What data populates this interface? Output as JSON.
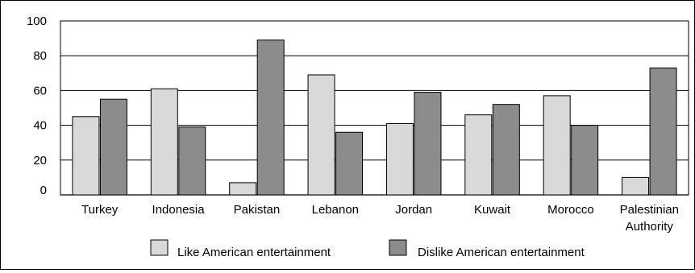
{
  "chart_data": {
    "type": "bar",
    "categories": [
      "Turkey",
      "Indonesia",
      "Pakistan",
      "Lebanon",
      "Jordan",
      "Kuwait",
      "Morocco",
      "Palestinian Authority"
    ],
    "category_lines": [
      [
        "Turkey"
      ],
      [
        "Indonesia"
      ],
      [
        "Pakistan"
      ],
      [
        "Lebanon"
      ],
      [
        "Jordan"
      ],
      [
        "Kuwait"
      ],
      [
        "Morocco"
      ],
      [
        "Palestinian",
        "Authority"
      ]
    ],
    "series": [
      {
        "name": "Like American entertainment",
        "values": [
          45,
          61,
          7,
          69,
          41,
          46,
          57,
          10
        ],
        "color": "#d9d9d9"
      },
      {
        "name": "Dislike American entertainment",
        "values": [
          55,
          39,
          89,
          36,
          59,
          52,
          40,
          73
        ],
        "color": "#8c8c8c"
      }
    ],
    "yticks": [
      0,
      20,
      40,
      60,
      80,
      100
    ],
    "ylim": [
      0,
      100
    ],
    "grid": true,
    "legend": "bottom"
  }
}
